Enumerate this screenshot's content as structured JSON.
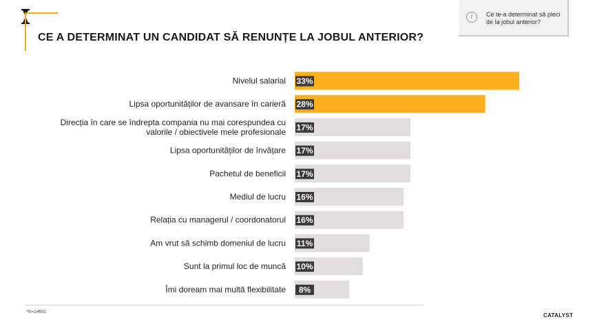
{
  "header": {
    "title": "CE A DETERMINAT UN CANDIDAT SĂ RENUNȚE LA JOBUL ANTERIOR?",
    "accent_color": "#f5a915"
  },
  "info_box": {
    "icon": "info-icon",
    "text": "Ce te-a determinat să pleci de la jobul anterior?"
  },
  "chart_data": {
    "type": "bar",
    "orientation": "horizontal",
    "categories": [
      [
        "Nivelul salarial"
      ],
      [
        "Lipsa oportunităților de avansare în carieră"
      ],
      [
        "Direcția în care se îndrepta compania nu mai corespundea cu",
        "valorile / obiectivele mele profesionale"
      ],
      [
        "Lipsa oportunităților de învățare"
      ],
      [
        "Pachetul de beneficii"
      ],
      [
        "Mediul de lucru"
      ],
      [
        "Relația cu managerul / coordonatorul"
      ],
      [
        "Am vrut să schimb domeniul de lucru"
      ],
      [
        "Sunt la primul loc de muncă"
      ],
      [
        "Îmi doream mai multă flexibilitate"
      ]
    ],
    "values": [
      33,
      28,
      17,
      17,
      17,
      16,
      16,
      11,
      10,
      8
    ],
    "value_labels": [
      "33%",
      "28%",
      "17%",
      "17%",
      "17%",
      "16%",
      "16%",
      "11%",
      "10%",
      "8%"
    ],
    "highlight_count": 2,
    "colors": {
      "highlight": "#fbb11d",
      "default": "#e0dcdf",
      "label_bg": "#3a3a3a",
      "label_text": "#ffffff"
    },
    "xlim": [
      0,
      50
    ],
    "grid": false,
    "legend": "none"
  },
  "footnote": "*N=14691",
  "logo": "CATALYST"
}
